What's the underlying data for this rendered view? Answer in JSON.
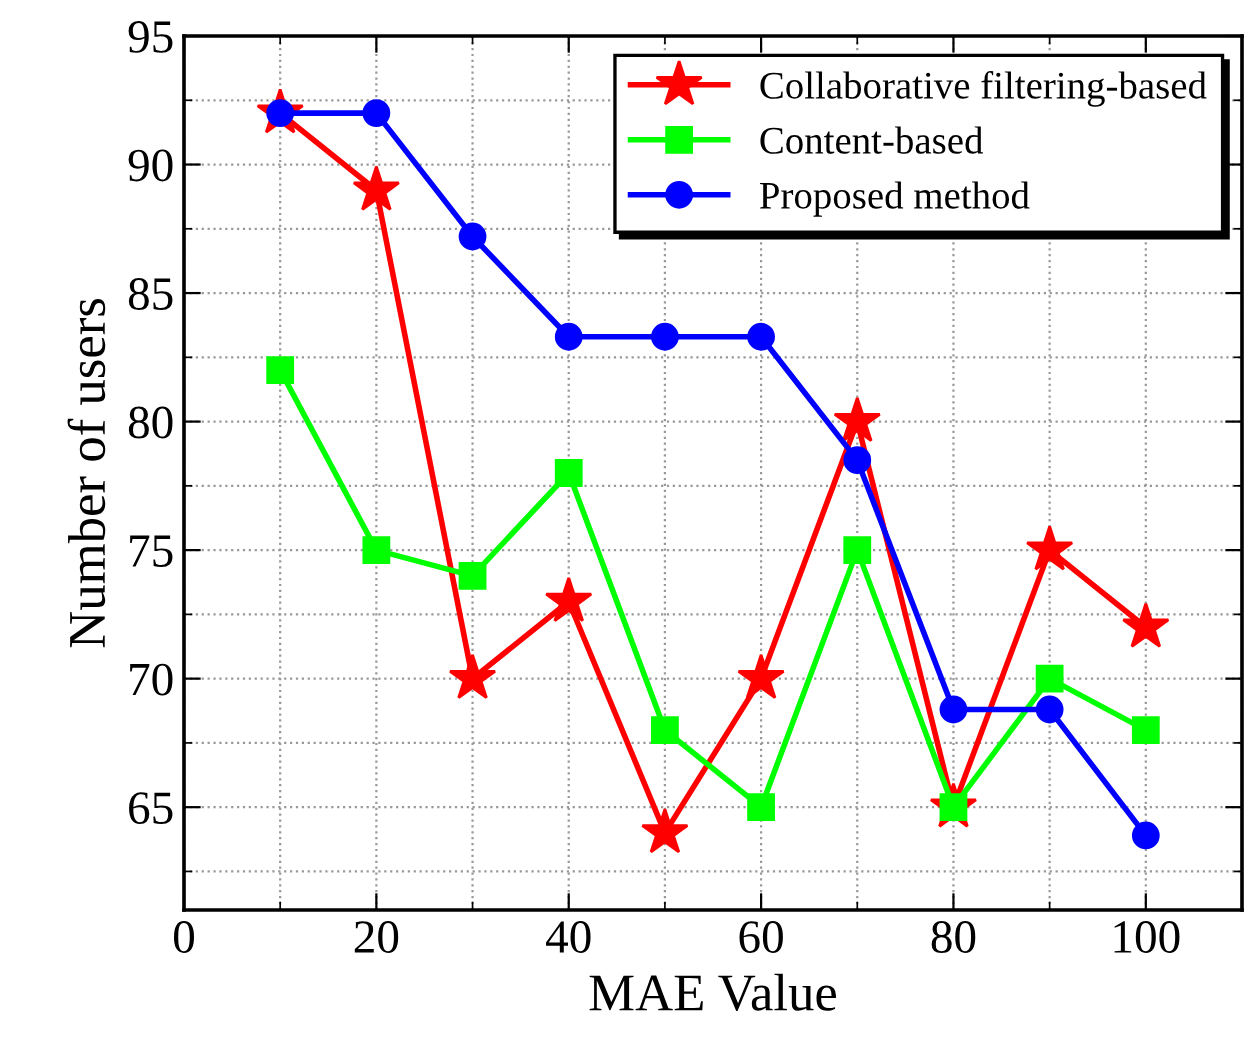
{
  "chart_data": {
    "type": "line",
    "xlabel": "MAE Value",
    "ylabel": "Number of users",
    "x": [
      10,
      20,
      30,
      40,
      50,
      60,
      70,
      80,
      90,
      100
    ],
    "series": [
      {
        "name": "Collaborative filtering-based",
        "color": "#ff0000",
        "marker": "star",
        "values": [
          92,
          89,
          70,
          73,
          64,
          70,
          80,
          65,
          75,
          72
        ]
      },
      {
        "name": "Content-based",
        "color": "#00ff00",
        "marker": "square",
        "values": [
          82,
          75,
          74,
          78,
          68,
          65,
          75,
          65,
          70,
          68
        ]
      },
      {
        "name": "Proposed method",
        "color": "#0000ff",
        "marker": "circle",
        "values": [
          92,
          92,
          87.2,
          83.3,
          83.3,
          83.3,
          78.5,
          68.8,
          68.8,
          63.9
        ]
      }
    ],
    "xlim": [
      0,
      110
    ],
    "xticks": [
      0,
      20,
      40,
      60,
      80,
      100
    ],
    "ylim": [
      61,
      95
    ],
    "yticks": [
      65,
      70,
      75,
      80,
      85,
      90,
      95
    ],
    "grid": true,
    "legend": "top right",
    "line_style": "solid"
  }
}
